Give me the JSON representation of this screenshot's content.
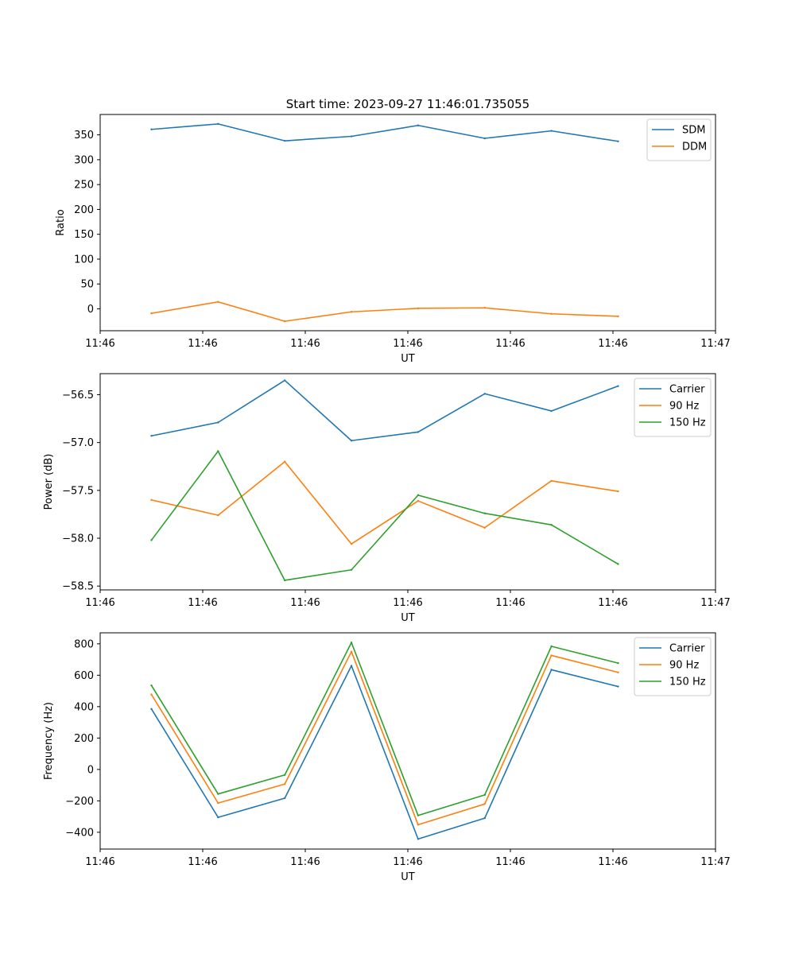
{
  "chart_data": [
    {
      "type": "line",
      "title": "Start time: 2023-09-27 11:46:01.735055",
      "xlabel": "UT",
      "ylabel": "Ratio",
      "x": [
        0.5,
        1.15,
        1.8,
        2.45,
        3.1,
        3.75,
        4.4,
        5.05
      ],
      "xlim": [
        0,
        6
      ],
      "xticks": [
        0,
        1,
        2,
        3,
        4,
        5,
        6
      ],
      "xtick_labels": [
        "11:46",
        "11:46",
        "11:46",
        "11:46",
        "11:46",
        "11:46",
        "11:47"
      ],
      "ylim": [
        -44,
        391
      ],
      "yticks": [
        0,
        50,
        100,
        150,
        200,
        250,
        300,
        350
      ],
      "ytick_labels": [
        "0",
        "50",
        "100",
        "150",
        "200",
        "250",
        "300",
        "350"
      ],
      "legend_position": "top-right",
      "series": [
        {
          "name": "SDM",
          "color": "#1f77b4",
          "values": [
            361,
            372,
            338,
            347,
            369,
            343,
            358,
            337
          ]
        },
        {
          "name": "DDM",
          "color": "#ff7f0e",
          "values": [
            -9,
            14,
            -25,
            -6,
            1,
            2,
            -10,
            -15
          ]
        }
      ]
    },
    {
      "type": "line",
      "title": "",
      "xlabel": "UT",
      "ylabel": "Power (dB)",
      "x": [
        0.5,
        1.15,
        1.8,
        2.45,
        3.1,
        3.75,
        4.4,
        5.05
      ],
      "xlim": [
        0,
        6
      ],
      "xticks": [
        0,
        1,
        2,
        3,
        4,
        5,
        6
      ],
      "xtick_labels": [
        "11:46",
        "11:46",
        "11:46",
        "11:46",
        "11:46",
        "11:46",
        "11:47"
      ],
      "ylim": [
        -58.54,
        -56.28
      ],
      "yticks": [
        -58.5,
        -58.0,
        -57.5,
        -57.0,
        -56.5
      ],
      "ytick_labels": [
        "−58.5",
        "−58.0",
        "−57.5",
        "−57.0",
        "−56.5"
      ],
      "legend_position": "top-right",
      "series": [
        {
          "name": "Carrier",
          "color": "#1f77b4",
          "values": [
            -56.93,
            -56.79,
            -56.35,
            -56.98,
            -56.89,
            -56.49,
            -56.67,
            -56.41
          ]
        },
        {
          "name": "90 Hz",
          "color": "#ff7f0e",
          "values": [
            -57.6,
            -57.76,
            -57.2,
            -58.06,
            -57.61,
            -57.89,
            -57.4,
            -57.51
          ]
        },
        {
          "name": "150 Hz",
          "color": "#2ca02c",
          "values": [
            -58.02,
            -57.09,
            -58.44,
            -58.33,
            -57.55,
            -57.74,
            -57.86,
            -58.27
          ]
        }
      ]
    },
    {
      "type": "line",
      "title": "",
      "xlabel": "UT",
      "ylabel": "Frequency (Hz)",
      "x": [
        0.5,
        1.15,
        1.8,
        2.45,
        3.1,
        3.75,
        4.4,
        5.05
      ],
      "xlim": [
        0,
        6
      ],
      "xticks": [
        0,
        1,
        2,
        3,
        4,
        5,
        6
      ],
      "xtick_labels": [
        "11:46",
        "11:46",
        "11:46",
        "11:46",
        "11:46",
        "11:46",
        "11:47"
      ],
      "ylim": [
        -507,
        870
      ],
      "yticks": [
        -400,
        -200,
        0,
        200,
        400,
        600,
        800
      ],
      "ytick_labels": [
        "−400",
        "−200",
        "0",
        "200",
        "400",
        "600",
        "800"
      ],
      "legend_position": "top-right",
      "series": [
        {
          "name": "Carrier",
          "color": "#1f77b4",
          "values": [
            385,
            -305,
            -183,
            660,
            -443,
            -310,
            635,
            528
          ]
        },
        {
          "name": "90 Hz",
          "color": "#ff7f0e",
          "values": [
            477,
            -214,
            -93,
            750,
            -352,
            -220,
            726,
            618
          ]
        },
        {
          "name": "150 Hz",
          "color": "#2ca02c",
          "values": [
            535,
            -156,
            -35,
            808,
            -293,
            -162,
            784,
            677
          ]
        }
      ]
    }
  ]
}
